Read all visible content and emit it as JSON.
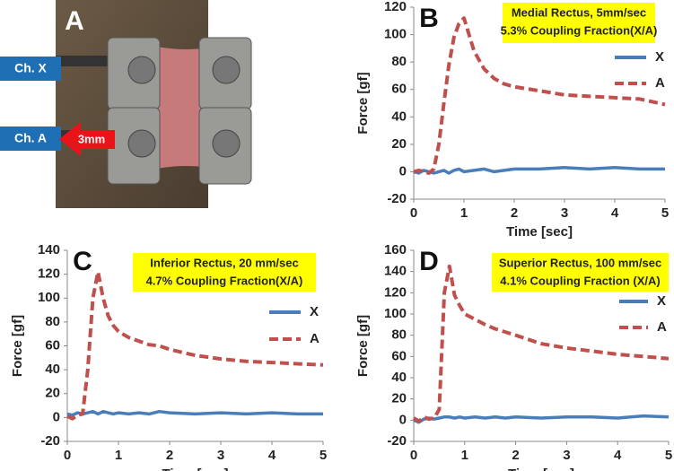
{
  "photo": {
    "label": "A",
    "channel_x": "Ch. X",
    "channel_a": "Ch. A",
    "arrow_label": "3mm"
  },
  "chart_data": [
    {
      "type": "line",
      "label": "B",
      "annotation": [
        "Medial Rectus, 5mm/sec",
        "5.3% Coupling Fraction(X/A)"
      ],
      "x_label": "Time [sec]",
      "y_label": "Force [gf]",
      "x": [
        0,
        0.1,
        0.2,
        0.3,
        0.4,
        0.5,
        0.6,
        0.7,
        0.8,
        0.9,
        1,
        1.2,
        1.4,
        1.6,
        1.8,
        2,
        2.5,
        3,
        3.5,
        4,
        4.5,
        5
      ],
      "series": [
        {
          "name": "X",
          "color": "#4a7ebb",
          "values": [
            0,
            -1,
            1,
            0,
            -1,
            0,
            1,
            -1,
            1,
            2,
            0,
            1,
            2,
            0,
            1,
            2,
            2,
            3,
            2,
            3,
            2,
            2
          ]
        },
        {
          "name": "A",
          "color": "#c0504d",
          "values": [
            0,
            1,
            0,
            -1,
            2,
            20,
            50,
            78,
            98,
            108,
            112,
            88,
            75,
            68,
            64,
            62,
            59,
            56,
            55,
            54,
            53,
            49
          ]
        }
      ],
      "xlim": [
        0,
        5
      ],
      "xticks": [
        0,
        1,
        2,
        3,
        4,
        5
      ],
      "ylim": [
        -20,
        120
      ],
      "yticks": [
        -20,
        0,
        20,
        40,
        60,
        80,
        100,
        120
      ]
    },
    {
      "type": "line",
      "label": "C",
      "annotation": [
        "Inferior Rectus, 20 mm/sec",
        "4.7% Coupling Fraction(X/A)"
      ],
      "x_label": "Time [sec]",
      "y_label": "Force [gf]",
      "x": [
        0,
        0.1,
        0.2,
        0.3,
        0.4,
        0.5,
        0.6,
        0.7,
        0.8,
        0.9,
        1,
        1.2,
        1.4,
        1.6,
        1.8,
        2,
        2.5,
        3,
        3.5,
        4,
        4.5,
        5
      ],
      "series": [
        {
          "name": "X",
          "color": "#4a7ebb",
          "values": [
            3,
            2,
            4,
            3,
            4,
            5,
            3,
            5,
            4,
            3,
            4,
            3,
            4,
            3,
            5,
            4,
            3,
            4,
            3,
            4,
            3,
            3
          ]
        },
        {
          "name": "A",
          "color": "#c0504d",
          "values": [
            1,
            -1,
            2,
            3,
            40,
            100,
            122,
            100,
            85,
            77,
            72,
            67,
            64,
            61,
            60,
            57,
            52,
            49,
            47,
            46,
            45,
            44
          ]
        }
      ],
      "xlim": [
        0,
        5
      ],
      "xticks": [
        0,
        1,
        2,
        3,
        4,
        5
      ],
      "ylim": [
        -20,
        140
      ],
      "yticks": [
        -20,
        0,
        20,
        40,
        60,
        80,
        100,
        120,
        140
      ]
    },
    {
      "type": "line",
      "label": "D",
      "annotation": [
        "Superior Rectus, 100 mm/sec",
        "4.1% Coupling Fraction (X/A)"
      ],
      "x_label": "Time [sec]",
      "y_label": "Force [gf]",
      "x": [
        0,
        0.1,
        0.2,
        0.3,
        0.4,
        0.5,
        0.6,
        0.7,
        0.8,
        0.9,
        1,
        1.2,
        1.4,
        1.6,
        1.8,
        2,
        2.5,
        3,
        3.5,
        4,
        4.5,
        5
      ],
      "series": [
        {
          "name": "X",
          "color": "#4a7ebb",
          "values": [
            0,
            -2,
            1,
            2,
            1,
            2,
            3,
            3,
            2,
            3,
            2,
            3,
            2,
            3,
            2,
            3,
            2,
            3,
            3,
            2,
            4,
            3
          ]
        },
        {
          "name": "A",
          "color": "#c0504d",
          "values": [
            2,
            -1,
            3,
            1,
            2,
            10,
            120,
            145,
            118,
            108,
            100,
            95,
            90,
            86,
            83,
            80,
            72,
            68,
            65,
            62,
            60,
            58
          ]
        }
      ],
      "xlim": [
        0,
        5
      ],
      "xticks": [
        0,
        1,
        2,
        3,
        4,
        5
      ],
      "ylim": [
        -20,
        160
      ],
      "yticks": [
        -20,
        0,
        20,
        40,
        60,
        80,
        100,
        120,
        140,
        160
      ]
    }
  ]
}
